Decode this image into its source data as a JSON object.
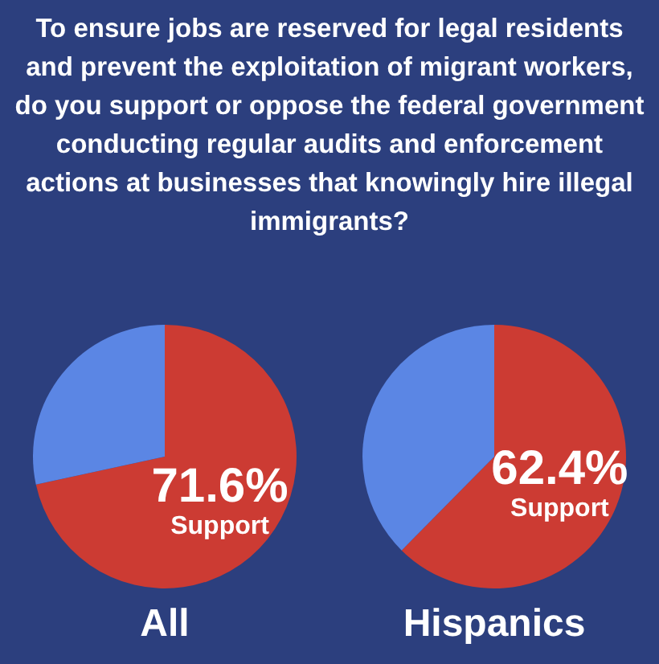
{
  "chart_data": [
    {
      "type": "pie",
      "title": "To ensure jobs are reserved for legal residents and prevent the exploitation of migrant workers, do you support or oppose the federal government conducting regular audits and enforcement actions at businesses that knowingly hire illegal immigrants?",
      "xlabel": "All",
      "categories": [
        "Support",
        null
      ],
      "values": [
        71.6,
        28.4
      ],
      "value_labels": [
        "71.6%",
        null
      ],
      "colors": [
        "#cc3b33",
        "#5b86e4"
      ]
    },
    {
      "type": "pie",
      "xlabel": "Hispanics",
      "categories": [
        "Support",
        null
      ],
      "values": [
        62.4,
        37.6
      ],
      "value_labels": [
        "62.4%",
        null
      ],
      "colors": [
        "#cc3b33",
        "#5b86e4"
      ]
    }
  ]
}
